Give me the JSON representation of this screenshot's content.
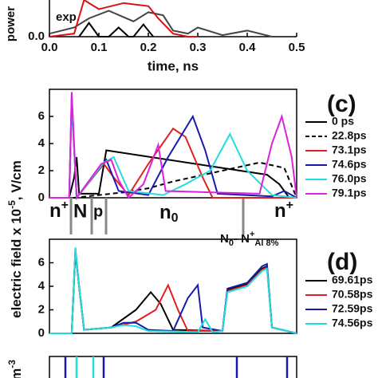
{
  "chart_data": [
    {
      "type": "line",
      "panel": "top",
      "ylabel": "power",
      "xlabel": "time, ns",
      "annotation": "exp.",
      "xlim": [
        0,
        0.5
      ],
      "ylim": [
        0,
        1.2
      ],
      "xticks": [
        {
          "value": 0,
          "label": "0.0"
        },
        {
          "value": 0.1,
          "label": "0.1"
        },
        {
          "value": 0.2,
          "label": "0.2"
        },
        {
          "value": 0.3,
          "label": "0.3"
        },
        {
          "value": 0.4,
          "label": "0.4"
        },
        {
          "value": 0.5,
          "label": "0.5"
        }
      ],
      "yticks": [
        {
          "value": 0,
          "label": "0.0"
        }
      ],
      "series": [
        {
          "color": "#444444",
          "x": [
            0,
            0.05,
            0.08,
            0.12,
            0.17,
            0.2,
            0.23,
            0.25,
            0.28,
            0.3,
            0.35,
            0.4,
            0.45
          ],
          "values": [
            0.1,
            0.3,
            0.6,
            0.85,
            0.5,
            0.8,
            0.7,
            0.2,
            0.1,
            0.3,
            0.05,
            0.2,
            0
          ]
        },
        {
          "color": "#dd1111",
          "x": [
            0,
            0.05,
            0.07,
            0.1,
            0.15,
            0.2,
            0.22,
            0.25,
            0.28,
            0.3
          ],
          "values": [
            0,
            0.1,
            1.2,
            0.9,
            1.1,
            1.0,
            0.6,
            0.1,
            0,
            0
          ]
        },
        {
          "color": "#000000",
          "x": [
            0.06,
            0.08,
            0.1,
            0.12,
            0.14,
            0.16,
            0.17,
            0.19,
            0.21
          ],
          "values": [
            0,
            0.45,
            0,
            0,
            0.3,
            0,
            0,
            0.4,
            0
          ]
        }
      ]
    },
    {
      "type": "line",
      "panel": "(c)",
      "xlim": [
        0,
        100
      ],
      "ylim": [
        0,
        8
      ],
      "yticks": [
        0,
        2,
        4,
        6
      ],
      "regions": [
        "n",
        "+",
        "N",
        "p",
        "n",
        "0",
        "n",
        "+"
      ],
      "series": [
        {
          "name": "0 ps",
          "color": "#000000",
          "x": [
            0,
            8,
            10,
            11,
            12,
            20,
            23,
            88,
            93,
            97,
            100
          ],
          "values": [
            0,
            0,
            1.5,
            3,
            0.3,
            0.3,
            3.5,
            1.7,
            1.0,
            0,
            0
          ]
        },
        {
          "name": "22.8ps",
          "color": "#000000",
          "dash": true,
          "x": [
            0,
            10,
            25,
            30,
            40,
            50,
            70,
            85,
            95,
            100
          ],
          "values": [
            0,
            0,
            0.3,
            0.4,
            0.7,
            1.2,
            2.0,
            2.6,
            2.2,
            0
          ]
        },
        {
          "name": "73.1ps",
          "color": "#e02020",
          "x": [
            0,
            8,
            9,
            11,
            22,
            26,
            32,
            40,
            50,
            55,
            62,
            66,
            100
          ],
          "values": [
            0,
            0,
            7.5,
            0,
            2.5,
            1.5,
            0.2,
            2.5,
            5.1,
            4.5,
            1.5,
            0,
            0
          ]
        },
        {
          "name": "74.6ps",
          "color": "#1a1aaa",
          "x": [
            0,
            8,
            9,
            11,
            23,
            28,
            40,
            48,
            58,
            63,
            68,
            90,
            95,
            100
          ],
          "values": [
            0,
            0,
            7,
            0,
            2.8,
            0.5,
            0.2,
            3.0,
            6.0,
            3.5,
            0.3,
            0.1,
            0.5,
            0
          ]
        },
        {
          "name": "76.0ps",
          "color": "#22dddd",
          "x": [
            0,
            8,
            9,
            11,
            22,
            26,
            32,
            46,
            55,
            65,
            73,
            80,
            90,
            100
          ],
          "values": [
            0,
            0,
            7.2,
            0,
            2.6,
            3.0,
            0.5,
            0.2,
            1.0,
            2.0,
            4.7,
            2.0,
            0.2,
            0
          ]
        },
        {
          "name": "79.1ps",
          "color": "#dd22dd",
          "x": [
            0,
            8,
            9,
            11,
            21,
            25,
            28,
            32,
            38,
            44,
            47,
            85,
            90,
            94,
            98,
            100
          ],
          "values": [
            0,
            0,
            7.8,
            0,
            2.5,
            2.8,
            1.3,
            0,
            1.0,
            3.9,
            0.5,
            0.3,
            4.0,
            6.0,
            3,
            0
          ]
        }
      ]
    },
    {
      "type": "line",
      "panel": "(d)",
      "xlim": [
        0,
        100
      ],
      "ylim": [
        0,
        8
      ],
      "yticks": [
        0,
        2,
        4,
        6
      ],
      "ylabel": [
        "electric field x 10",
        "-5",
        ", V/cm"
      ],
      "annotation": [
        "N",
        "0",
        "- N",
        "+",
        "Al 8%"
      ],
      "series": [
        {
          "name": "69.61ps",
          "color": "#000000",
          "x": [
            0,
            9,
            10.5,
            12,
            14,
            25,
            35,
            41,
            45,
            50,
            70,
            72,
            80,
            86,
            88,
            90,
            100
          ],
          "values": [
            0,
            0,
            7,
            4,
            0.3,
            0.5,
            2,
            3.5,
            2.5,
            0.3,
            0.2,
            3.7,
            4.2,
            5.5,
            5.7,
            0.5,
            0
          ]
        },
        {
          "name": "70.58ps",
          "color": "#e02020",
          "x": [
            0,
            9,
            10.5,
            12,
            14,
            25,
            35,
            43,
            48,
            52,
            56,
            70,
            72,
            80,
            86,
            88,
            90,
            100
          ],
          "values": [
            0,
            0,
            7.2,
            4,
            0.3,
            0.5,
            1.0,
            2.0,
            4.1,
            2.0,
            0.2,
            0.2,
            3.6,
            4.1,
            5.4,
            5.6,
            0.5,
            0
          ]
        },
        {
          "name": "72.59ps",
          "color": "#1a1aaa",
          "x": [
            0,
            9,
            10.5,
            12,
            14,
            25,
            30,
            35,
            40,
            50,
            56,
            60,
            62,
            70,
            72,
            80,
            86,
            88,
            90,
            100
          ],
          "values": [
            0,
            0,
            7.1,
            4,
            0.3,
            0.5,
            0.9,
            0.9,
            0.3,
            0.2,
            3.0,
            4.1,
            0.5,
            0.2,
            3.8,
            4.3,
            5.7,
            5.9,
            0.5,
            0
          ]
        },
        {
          "name": "74.56ps",
          "color": "#22dddd",
          "x": [
            0,
            9,
            10.5,
            12,
            14,
            25,
            30,
            35,
            40,
            60,
            63,
            66,
            70,
            72,
            80,
            86,
            88,
            90,
            100
          ],
          "values": [
            0,
            0,
            7.3,
            4,
            0.3,
            0.5,
            0.7,
            0.6,
            0.2,
            0.1,
            1.2,
            0.1,
            0.2,
            3.5,
            4.0,
            5.3,
            5.5,
            0.5,
            0
          ]
        }
      ]
    },
    {
      "type": "line",
      "panel": "bottom",
      "ylabel": [
        "m",
        "-3"
      ]
    }
  ]
}
